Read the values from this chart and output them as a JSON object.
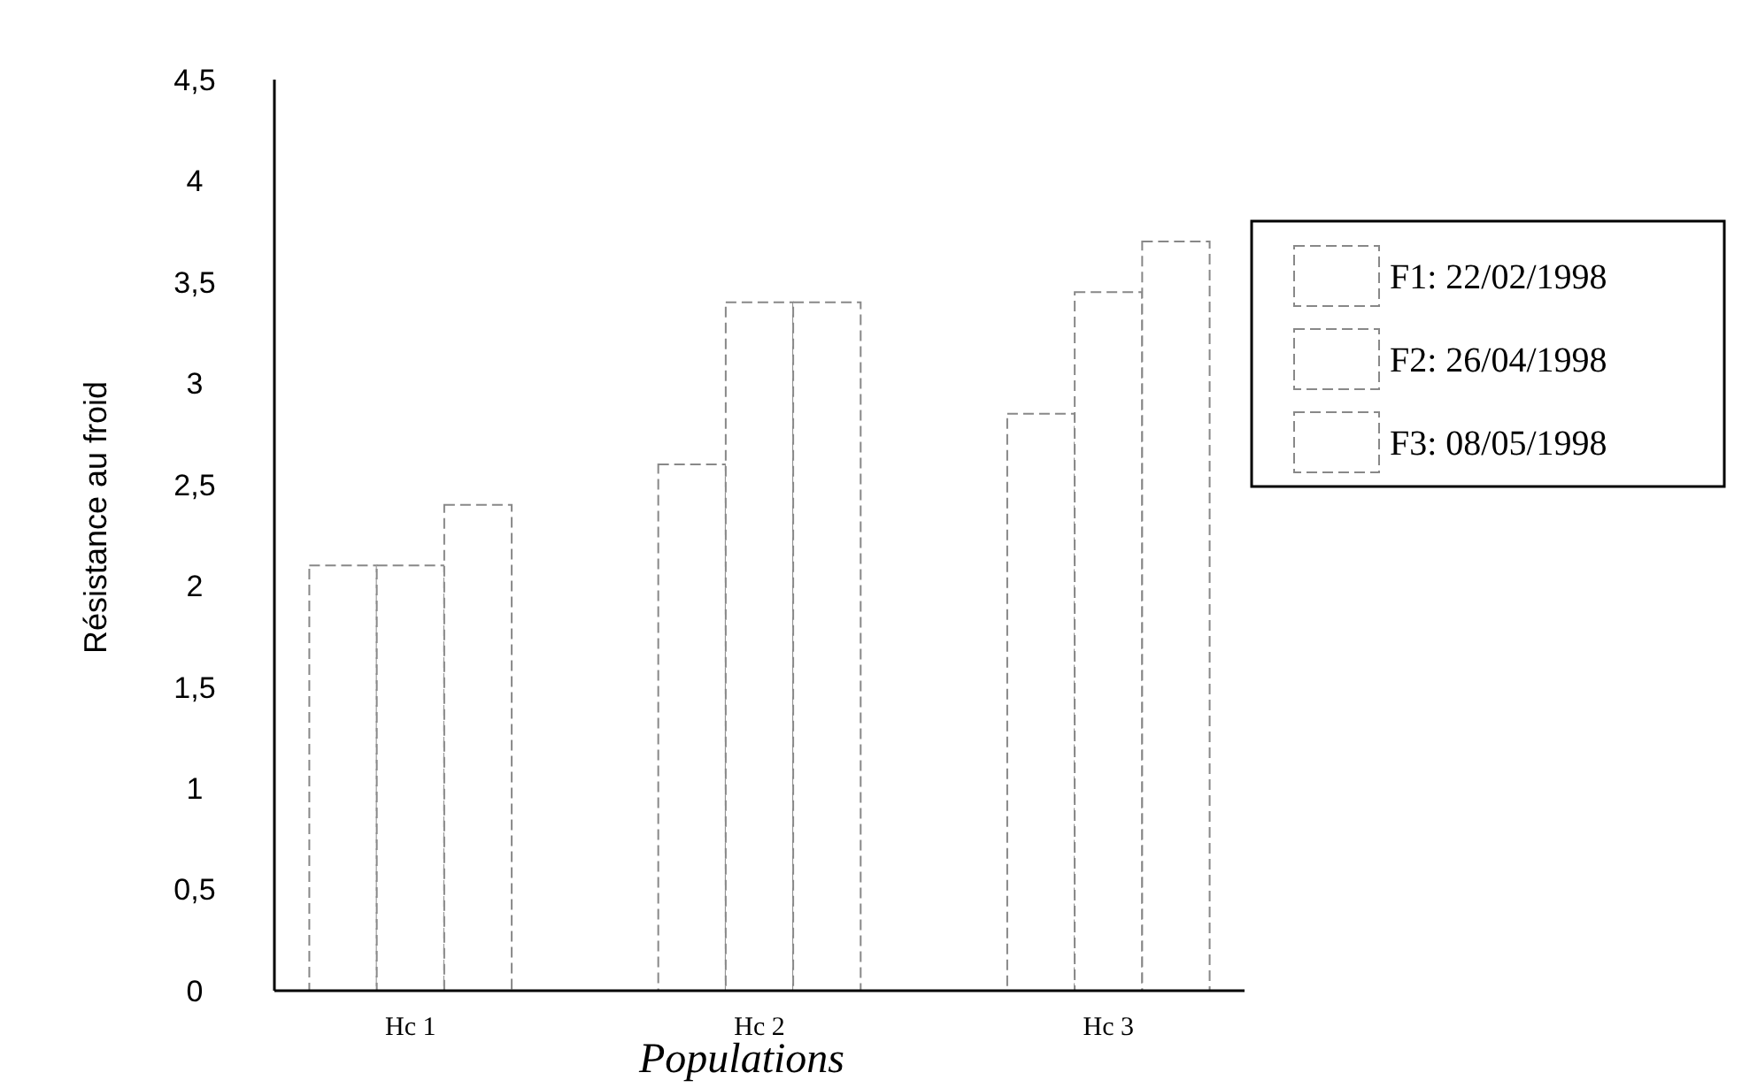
{
  "chart_data": {
    "type": "bar",
    "xlabel": "Populations",
    "ylabel": "Résistance au froid",
    "categories": [
      "Hc 1",
      "Hc 2",
      "Hc 3"
    ],
    "series": [
      {
        "name": "F1: 22/02/1998",
        "color": "#ffffff",
        "values": [
          2.1,
          2.6,
          2.85
        ]
      },
      {
        "name": "F2: 26/04/1998",
        "color": "#ffffff",
        "values": [
          2.1,
          3.4,
          3.45
        ]
      },
      {
        "name": "F3: 08/05/1998",
        "color": "#ffffff",
        "values": [
          2.4,
          3.4,
          3.7
        ]
      }
    ],
    "ylim": [
      0,
      4.5
    ],
    "yticks": [
      0,
      {
        "value": 0.5,
        "label": "0,5"
      },
      1,
      {
        "value": 1.5,
        "label": "1,5"
      },
      2,
      {
        "value": 2.5,
        "label": "2,5"
      },
      3,
      {
        "value": 3.5,
        "label": "3,5"
      },
      4,
      {
        "value": 4.5,
        "label": "4,5"
      }
    ],
    "grid": false,
    "legend": "right"
  }
}
